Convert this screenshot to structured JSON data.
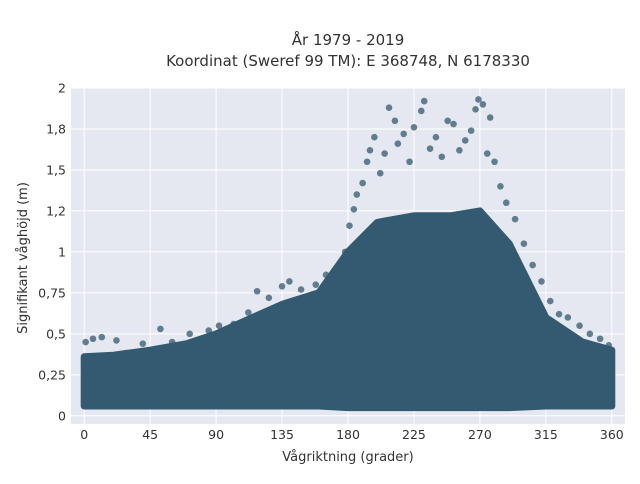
{
  "chart_data": {
    "type": "scatter",
    "title": "År 1979 - 2019",
    "subtitle": "Koordinat (Sweref 99 TM): E 368748, N 6178330",
    "xlabel": "Vågriktning (grader)",
    "ylabel": "Signifikant våghöjd (m)",
    "xlim": [
      -9,
      369
    ],
    "ylim": [
      -0.05,
      2.0
    ],
    "x_ticks": [
      0,
      45,
      90,
      135,
      180,
      225,
      270,
      315,
      360
    ],
    "y_ticks": [
      0,
      0.25,
      0.5,
      0.75,
      1,
      1.25,
      1.5,
      1.75,
      2
    ],
    "x_tick_labels": [
      "0",
      "45",
      "90",
      "135",
      "180",
      "225",
      "270",
      "315",
      "360"
    ],
    "y_tick_labels": [
      "0",
      "0,25",
      "0,5",
      "0,75",
      "1",
      "1,2",
      "1,5",
      "1,8",
      "2"
    ],
    "grid": true,
    "background": "#e5e8f0",
    "marker_color": "#335a70",
    "series": [
      {
        "dense_envelope": [
          {
            "x": 0,
            "lower": 0.06,
            "upper": 0.36
          },
          {
            "x": 20,
            "lower": 0.06,
            "upper": 0.37
          },
          {
            "x": 45,
            "lower": 0.06,
            "upper": 0.4
          },
          {
            "x": 70,
            "lower": 0.06,
            "upper": 0.44
          },
          {
            "x": 90,
            "lower": 0.06,
            "upper": 0.5
          },
          {
            "x": 110,
            "lower": 0.06,
            "upper": 0.58
          },
          {
            "x": 135,
            "lower": 0.06,
            "upper": 0.68
          },
          {
            "x": 160,
            "lower": 0.06,
            "upper": 0.75
          },
          {
            "x": 180,
            "lower": 0.05,
            "upper": 1.0
          },
          {
            "x": 200,
            "lower": 0.05,
            "upper": 1.18
          },
          {
            "x": 225,
            "lower": 0.05,
            "upper": 1.22
          },
          {
            "x": 250,
            "lower": 0.05,
            "upper": 1.22
          },
          {
            "x": 270,
            "lower": 0.05,
            "upper": 1.25
          },
          {
            "x": 290,
            "lower": 0.05,
            "upper": 1.05
          },
          {
            "x": 315,
            "lower": 0.06,
            "upper": 0.6
          },
          {
            "x": 340,
            "lower": 0.06,
            "upper": 0.45
          },
          {
            "x": 360,
            "lower": 0.06,
            "upper": 0.4
          }
        ],
        "outliers": [
          {
            "x": 1,
            "y": 0.45
          },
          {
            "x": 6,
            "y": 0.47
          },
          {
            "x": 12,
            "y": 0.48
          },
          {
            "x": 22,
            "y": 0.46
          },
          {
            "x": 40,
            "y": 0.44
          },
          {
            "x": 52,
            "y": 0.53
          },
          {
            "x": 60,
            "y": 0.45
          },
          {
            "x": 72,
            "y": 0.5
          },
          {
            "x": 85,
            "y": 0.52
          },
          {
            "x": 92,
            "y": 0.55
          },
          {
            "x": 102,
            "y": 0.56
          },
          {
            "x": 112,
            "y": 0.63
          },
          {
            "x": 118,
            "y": 0.76
          },
          {
            "x": 126,
            "y": 0.72
          },
          {
            "x": 135,
            "y": 0.79
          },
          {
            "x": 140,
            "y": 0.82
          },
          {
            "x": 148,
            "y": 0.77
          },
          {
            "x": 158,
            "y": 0.8
          },
          {
            "x": 165,
            "y": 0.86
          },
          {
            "x": 172,
            "y": 0.88
          },
          {
            "x": 178,
            "y": 1.0
          },
          {
            "x": 181,
            "y": 1.16
          },
          {
            "x": 184,
            "y": 1.26
          },
          {
            "x": 186,
            "y": 1.35
          },
          {
            "x": 190,
            "y": 1.42
          },
          {
            "x": 193,
            "y": 1.55
          },
          {
            "x": 195,
            "y": 1.62
          },
          {
            "x": 198,
            "y": 1.7
          },
          {
            "x": 202,
            "y": 1.48
          },
          {
            "x": 205,
            "y": 1.6
          },
          {
            "x": 208,
            "y": 1.88
          },
          {
            "x": 212,
            "y": 1.8
          },
          {
            "x": 214,
            "y": 1.66
          },
          {
            "x": 218,
            "y": 1.72
          },
          {
            "x": 222,
            "y": 1.55
          },
          {
            "x": 225,
            "y": 1.76
          },
          {
            "x": 230,
            "y": 1.86
          },
          {
            "x": 232,
            "y": 1.92
          },
          {
            "x": 236,
            "y": 1.63
          },
          {
            "x": 240,
            "y": 1.7
          },
          {
            "x": 244,
            "y": 1.58
          },
          {
            "x": 248,
            "y": 1.8
          },
          {
            "x": 252,
            "y": 1.78
          },
          {
            "x": 256,
            "y": 1.62
          },
          {
            "x": 260,
            "y": 1.68
          },
          {
            "x": 264,
            "y": 1.74
          },
          {
            "x": 267,
            "y": 1.87
          },
          {
            "x": 269,
            "y": 1.93
          },
          {
            "x": 272,
            "y": 1.9
          },
          {
            "x": 275,
            "y": 1.6
          },
          {
            "x": 277,
            "y": 1.82
          },
          {
            "x": 280,
            "y": 1.55
          },
          {
            "x": 284,
            "y": 1.4
          },
          {
            "x": 288,
            "y": 1.3
          },
          {
            "x": 294,
            "y": 1.2
          },
          {
            "x": 300,
            "y": 1.05
          },
          {
            "x": 306,
            "y": 0.92
          },
          {
            "x": 312,
            "y": 0.82
          },
          {
            "x": 318,
            "y": 0.7
          },
          {
            "x": 324,
            "y": 0.62
          },
          {
            "x": 330,
            "y": 0.6
          },
          {
            "x": 338,
            "y": 0.55
          },
          {
            "x": 345,
            "y": 0.5
          },
          {
            "x": 352,
            "y": 0.47
          },
          {
            "x": 358,
            "y": 0.43
          }
        ]
      }
    ]
  }
}
